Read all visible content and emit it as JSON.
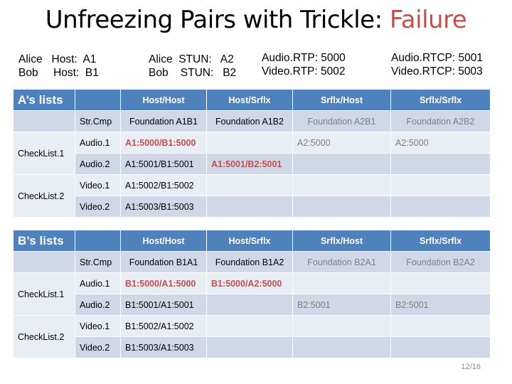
{
  "title": {
    "main": "Unfreezing Pairs with Trickle: ",
    "accent": "Failure"
  },
  "info": {
    "col1": [
      "Alice   Host:  A1",
      "Bob     Host:  B1"
    ],
    "col2": [
      "Alice  STUN:   A2",
      "Bob    STUN:   B2"
    ],
    "col3": [
      "Audio.RTP: 5000",
      "Video.RTP: 5002"
    ],
    "col4": [
      "Audio.RTCP: 5001",
      "Video.RTCP: 5003"
    ]
  },
  "tableA": {
    "title": "A’s lists",
    "headers": [
      "Host/Host",
      "Host/Srflx",
      "Srflx/Host",
      "Srflx/Srflx"
    ],
    "strcmp": "Str.Cmp",
    "foundations": [
      "Foundation A1B1",
      "Foundation A1B2",
      "Foundation A2B1",
      "Foundation A2B2"
    ],
    "checklist1": "CheckList.1",
    "checklist2": "CheckList.2",
    "rows": [
      {
        "label": "Audio.1",
        "cells": [
          "A1:5000/B1:5000",
          "",
          "A2:5000",
          "A2:5000"
        ]
      },
      {
        "label": "Audio.2",
        "cells": [
          "A1:5001/B1:5001",
          "A1:5001/B2:5001",
          "",
          ""
        ]
      },
      {
        "label": "Video.1",
        "cells": [
          "A1:5002/B1:5002",
          "",
          "",
          ""
        ]
      },
      {
        "label": "Video.2",
        "cells": [
          "A1:5003/B1:5003",
          "",
          "",
          ""
        ]
      }
    ]
  },
  "tableB": {
    "title": "B’s lists",
    "headers": [
      "Host/Host",
      "Host/Srflx",
      "Srflx/Host",
      "Srflx/Srflx"
    ],
    "strcmp": "Str.Cmp",
    "foundations": [
      "Foundation B1A1",
      "Foundation B1A2",
      "Foundation B2A1",
      "Foundation B2A2"
    ],
    "checklist1": "CheckList.1",
    "checklist2": "CheckList.2",
    "rows": [
      {
        "label": "Audio.1",
        "cells": [
          "B1:5000/A1:5000",
          "B1:5000/A2:5000",
          "",
          ""
        ]
      },
      {
        "label": "Audio.2",
        "cells": [
          "B1:5001/A1:5001",
          "",
          "B2:5001",
          "B2:5001"
        ]
      },
      {
        "label": "Video.1",
        "cells": [
          "B1:5002/A1:5002",
          "",
          "",
          ""
        ]
      },
      {
        "label": "Video.2",
        "cells": [
          "B1:5003/A1:5003",
          "",
          "",
          ""
        ]
      }
    ]
  },
  "page_number": "12/16",
  "colors": {
    "header": "#4f81bd",
    "row_light": "#e9edf4",
    "row_dark": "#d0d8e8",
    "accent": "#c0504d"
  }
}
